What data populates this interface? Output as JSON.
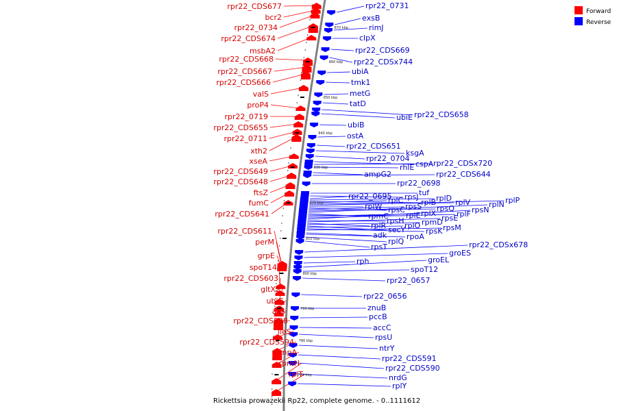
{
  "caption": "Rickettsia prowazekii Rp22, complete genome. - 0..1111612",
  "legend": {
    "forward": {
      "label": "Forward",
      "color": "#ff0000"
    },
    "reverse": {
      "label": "Reverse",
      "color": "#0000ff"
    }
  },
  "colors": {
    "forward_text": "#d40000",
    "reverse_text": "#0000c8",
    "backbone": "#808080"
  },
  "ticks": [
    "870 kbp",
    "860 kbp",
    "850 kbp",
    "840 kbp",
    "830 kbp",
    "820 kbp",
    "810 kbp",
    "800 kbp",
    "790 kbp",
    "780 kbp",
    "770 kbp"
  ],
  "forward_genes": [
    "rpr22_CDS677",
    "bcr2",
    "rpr22_0734",
    "rpr22_CDS674",
    "msbA2",
    "rpr22_CDS668",
    "rpr22_CDS667",
    "rpr22_CDS666",
    "valS",
    "proP4",
    "rpr22_0719",
    "rpr22_CDS655",
    "rpr22_0711",
    "xth2",
    "xseA",
    "rpr22_CDS649",
    "rpr22_CDS648",
    "ftsZ",
    "fumC",
    "rpr22_CDS641",
    "rpr22_CDS611",
    "perM",
    "grpE",
    "spoT14",
    "rpr22_CDS603",
    "gltX2",
    "ubiG",
    "aas",
    "rpr22_CDS598",
    "ileS",
    "rpr22_CDS594",
    "rnpA",
    "rpmH",
    "rplT"
  ],
  "reverse_genes": [
    "rpr22_0731",
    "exsB",
    "rimJ",
    "clpX",
    "rpr22_CDS669",
    "rpr22_CDSx744",
    "ubiA",
    "tmk1",
    "metG",
    "tatD",
    "rpr22_CDS658",
    "ubiE",
    "ubiB",
    "ostA",
    "rpr22_CDS651",
    "ksgA",
    "rpr22_0704",
    "cspA",
    "rpr22_CDSx720",
    "rhlE",
    "ampG2",
    "rpr22_CDS644",
    "rpr22_0698",
    "tuf",
    "rpsJ",
    "rpr22_0695",
    "rplD",
    "rplB",
    "rplC",
    "rplV",
    "rplP",
    "rplW",
    "rpsC",
    "rpsS",
    "rpsQ",
    "rplN",
    "rpmC",
    "rplE",
    "rplX",
    "rplF",
    "rpsN",
    "rpsH",
    "rpsE",
    "rplR",
    "rpmD",
    "secY",
    "rplO",
    "rpsK",
    "rpsM",
    "adk",
    "rpoA",
    "rplQ",
    "rpsT",
    "rpr22_CDSx678",
    "groES",
    "rph",
    "groEL",
    "spoT12",
    "rpr22_0657",
    "rpr22_0656",
    "znuB",
    "pccB",
    "accC",
    "rpsU",
    "ntrY",
    "rpr22_CDS591",
    "rpr22_CDS590",
    "nrdG",
    "rplY"
  ]
}
